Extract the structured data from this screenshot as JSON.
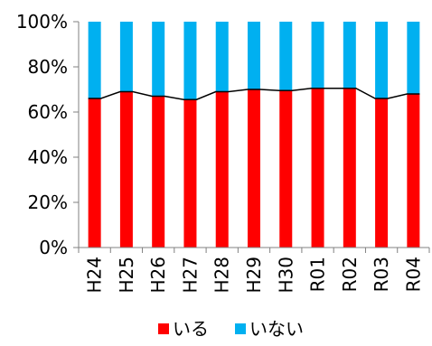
{
  "chart_data": {
    "type": "bar",
    "stacked": true,
    "percent_stacked": true,
    "categories": [
      "H24",
      "H25",
      "H26",
      "H27",
      "H28",
      "H29",
      "H30",
      "R01",
      "R02",
      "R03",
      "R04"
    ],
    "series": [
      {
        "name": "いる",
        "color": "#ff0000",
        "values": [
          66,
          69,
          67,
          65.5,
          69,
          70,
          69.5,
          70.5,
          70.5,
          66,
          68
        ]
      },
      {
        "name": "いない",
        "color": "#00b0f0",
        "values": [
          34,
          31,
          33,
          34.5,
          31,
          30,
          30.5,
          29.5,
          29.5,
          34,
          32
        ]
      }
    ],
    "series_lines": true,
    "y_ticks": [
      "0%",
      "20%",
      "40%",
      "60%",
      "80%",
      "100%"
    ],
    "ylim": [
      0,
      100
    ],
    "grid": false,
    "legend_position": "bottom"
  }
}
